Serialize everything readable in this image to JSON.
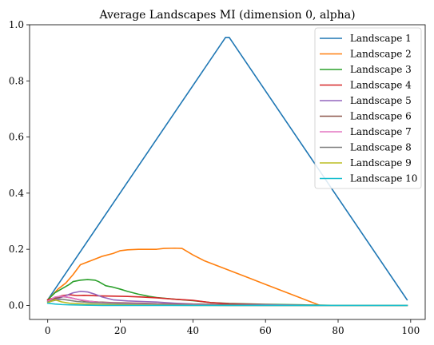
{
  "chart_data": {
    "type": "line",
    "title": "Average Landscapes MI (dimension 0, alpha)",
    "xlabel": "",
    "ylabel": "",
    "xlim": [
      -5,
      104
    ],
    "ylim": [
      -0.05,
      1.0
    ],
    "x_ticks": [
      0,
      20,
      40,
      60,
      80,
      100
    ],
    "y_ticks": [
      0.0,
      0.2,
      0.4,
      0.6,
      0.8,
      1.0
    ],
    "x_tick_labels": [
      "0",
      "20",
      "40",
      "60",
      "80",
      "100"
    ],
    "y_tick_labels": [
      "0.0",
      "0.2",
      "0.4",
      "0.6",
      "0.8",
      "1.0"
    ],
    "grid": false,
    "legend_position": "top-right",
    "series": [
      {
        "name": "Landscape 1",
        "color": "#1f77b4",
        "x": [
          0,
          49,
          50,
          99
        ],
        "y": [
          0.02,
          0.955,
          0.955,
          0.02
        ]
      },
      {
        "name": "Landscape 2",
        "color": "#ff7f0e",
        "x": [
          0,
          3,
          5,
          7,
          9,
          12,
          15,
          18,
          20,
          22,
          25,
          28,
          30,
          32,
          35,
          37,
          40,
          43,
          46,
          50,
          55,
          60,
          65,
          70,
          74,
          75,
          80,
          90,
          99
        ],
        "y": [
          0.02,
          0.06,
          0.08,
          0.11,
          0.145,
          0.16,
          0.175,
          0.185,
          0.195,
          0.198,
          0.2,
          0.2,
          0.2,
          0.203,
          0.204,
          0.203,
          0.18,
          0.16,
          0.145,
          0.125,
          0.1,
          0.075,
          0.05,
          0.025,
          0.005,
          0.0,
          0.0,
          0.0,
          0.0
        ]
      },
      {
        "name": "Landscape 3",
        "color": "#2ca02c",
        "x": [
          0,
          2,
          4,
          6,
          7,
          9,
          11,
          13,
          14,
          16,
          18,
          20,
          22,
          25,
          28,
          30,
          35,
          40,
          45,
          50,
          60,
          70,
          80,
          99
        ],
        "y": [
          0.02,
          0.045,
          0.06,
          0.075,
          0.085,
          0.09,
          0.092,
          0.09,
          0.085,
          0.07,
          0.065,
          0.058,
          0.05,
          0.04,
          0.032,
          0.028,
          0.022,
          0.017,
          0.01,
          0.007,
          0.004,
          0.002,
          0.0,
          0.0
        ]
      },
      {
        "name": "Landscape 4",
        "color": "#d62728",
        "x": [
          0,
          2,
          4,
          6,
          8,
          10,
          14,
          18,
          22,
          26,
          30,
          35,
          40,
          45,
          50,
          60,
          70,
          80,
          99
        ],
        "y": [
          0.02,
          0.028,
          0.035,
          0.038,
          0.035,
          0.036,
          0.034,
          0.033,
          0.032,
          0.03,
          0.027,
          0.022,
          0.018,
          0.01,
          0.006,
          0.003,
          0.0,
          0.0,
          0.0
        ]
      },
      {
        "name": "Landscape 5",
        "color": "#9467bd",
        "x": [
          0,
          3,
          5,
          7,
          9,
          11,
          13,
          15,
          18,
          22,
          26,
          30,
          35,
          40,
          50,
          60,
          70,
          80,
          99
        ],
        "y": [
          0.015,
          0.025,
          0.035,
          0.045,
          0.05,
          0.048,
          0.04,
          0.03,
          0.02,
          0.016,
          0.014,
          0.012,
          0.008,
          0.005,
          0.003,
          0.002,
          0.001,
          0.0,
          0.0
        ]
      },
      {
        "name": "Landscape 6",
        "color": "#8c564b",
        "x": [
          0,
          2,
          4,
          6,
          8,
          10,
          14,
          18,
          22,
          26,
          30,
          40,
          50,
          60,
          99
        ],
        "y": [
          0.015,
          0.025,
          0.032,
          0.028,
          0.022,
          0.016,
          0.012,
          0.01,
          0.009,
          0.008,
          0.006,
          0.004,
          0.002,
          0.0,
          0.0
        ]
      },
      {
        "name": "Landscape 7",
        "color": "#e377c2",
        "x": [
          0,
          2,
          4,
          6,
          8,
          10,
          12,
          15,
          20,
          25,
          30,
          40,
          50,
          60,
          99
        ],
        "y": [
          0.015,
          0.03,
          0.033,
          0.028,
          0.022,
          0.018,
          0.014,
          0.01,
          0.008,
          0.006,
          0.004,
          0.002,
          0.0,
          0.0,
          0.0
        ]
      },
      {
        "name": "Landscape 8",
        "color": "#7f7f7f",
        "x": [
          0,
          2,
          4,
          6,
          8,
          12,
          16,
          20,
          25,
          30,
          40,
          50,
          99
        ],
        "y": [
          0.012,
          0.018,
          0.022,
          0.018,
          0.014,
          0.01,
          0.008,
          0.006,
          0.004,
          0.003,
          0.001,
          0.0,
          0.0
        ]
      },
      {
        "name": "Landscape 9",
        "color": "#bcbd22",
        "x": [
          0,
          2,
          4,
          6,
          10,
          15,
          20,
          30,
          40,
          99
        ],
        "y": [
          0.01,
          0.02,
          0.012,
          0.008,
          0.005,
          0.003,
          0.002,
          0.001,
          0.0,
          0.0
        ]
      },
      {
        "name": "Landscape 10",
        "color": "#17becf",
        "x": [
          0,
          2,
          4,
          6,
          10,
          15,
          20,
          30,
          99
        ],
        "y": [
          0.008,
          0.005,
          0.003,
          0.002,
          0.001,
          0.0,
          0.0,
          0.0,
          0.0
        ]
      }
    ]
  }
}
